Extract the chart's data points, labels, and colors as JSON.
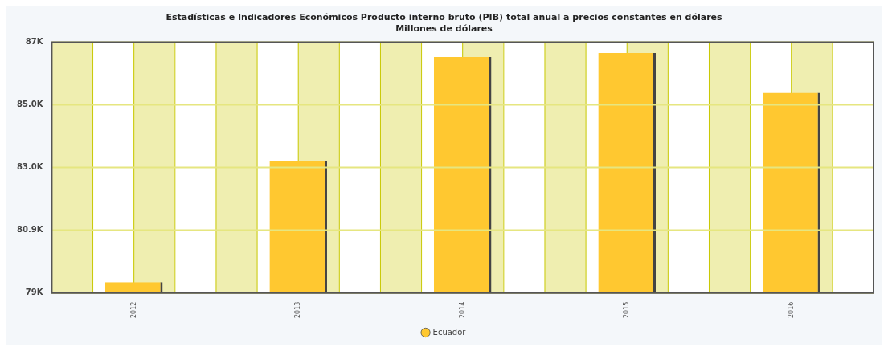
{
  "chart_data": {
    "type": "bar",
    "title": [
      "Estadísticas e Indicadores Económicos Producto interno bruto (PIB) total anual a precios constantes en dólares",
      "Millones de dólares"
    ],
    "categories": [
      "2012",
      "2013",
      "2014",
      "2015",
      "2016"
    ],
    "series": [
      {
        "name": "Ecuador",
        "color": "#ffc830",
        "values": [
          79.25,
          83.15,
          86.52,
          86.65,
          85.36
        ]
      }
    ],
    "ylim": [
      78.9,
      87.0
    ],
    "yticks": [
      {
        "value": 78.9,
        "label": "79K"
      },
      {
        "value": 80.925,
        "label": "80.9K"
      },
      {
        "value": 82.95,
        "label": "83.0K"
      },
      {
        "value": 84.975,
        "label": "85.0K"
      },
      {
        "value": 87.0,
        "label": "87K"
      }
    ],
    "grid": true,
    "legend": "bottom"
  }
}
